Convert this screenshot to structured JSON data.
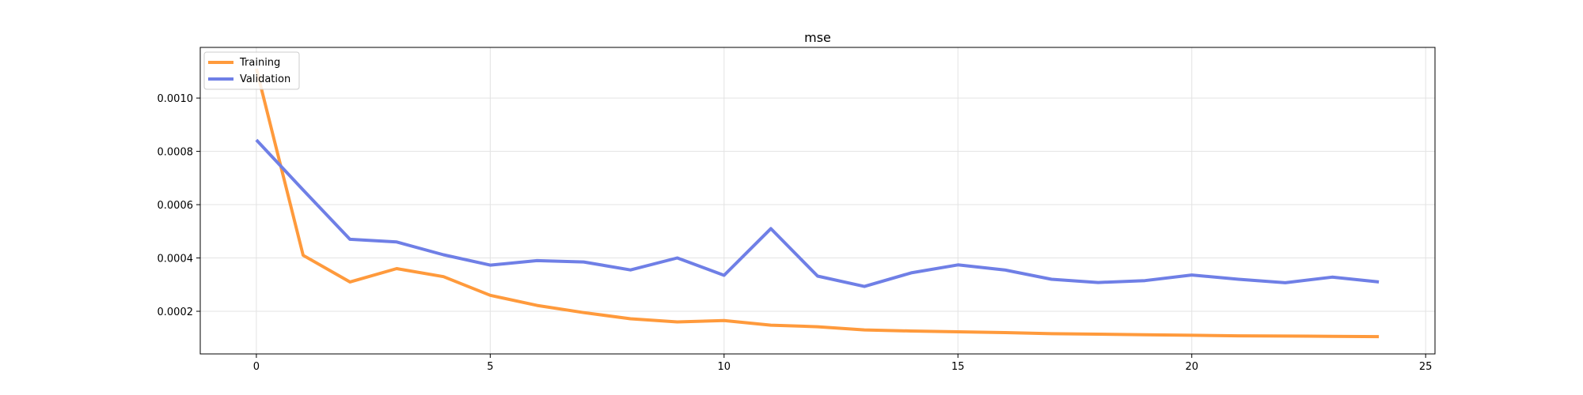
{
  "chart_data": {
    "type": "line",
    "title": "mse",
    "xlabel": "",
    "ylabel": "",
    "x": [
      0,
      1,
      2,
      3,
      4,
      5,
      6,
      7,
      8,
      9,
      10,
      11,
      12,
      13,
      14,
      15,
      16,
      17,
      18,
      19,
      20,
      21,
      22,
      23,
      24
    ],
    "xlim": [
      -1.2,
      25.2
    ],
    "ylim": [
      4e-05,
      0.00119
    ],
    "xticks": [
      0,
      5,
      10,
      15,
      20,
      25
    ],
    "yticks": [
      0.0002,
      0.0004,
      0.0006,
      0.0008,
      0.001
    ],
    "ytick_labels": [
      "0.0002",
      "0.0004",
      "0.0006",
      "0.0008",
      "0.0010"
    ],
    "grid": true,
    "legend_position": "top-left",
    "series": [
      {
        "name": "Training",
        "color": "#ff9a3c",
        "values": [
          0.00111,
          0.00041,
          0.00031,
          0.00036,
          0.00033,
          0.00026,
          0.000222,
          0.000195,
          0.000172,
          0.00016,
          0.000165,
          0.000148,
          0.000142,
          0.00013,
          0.000126,
          0.000123,
          0.00012,
          0.000116,
          0.000114,
          0.000112,
          0.00011,
          0.000108,
          0.000107,
          0.000106,
          0.000105
        ]
      },
      {
        "name": "Validation",
        "color": "#6f7fe6",
        "values": [
          0.000843,
          0.000655,
          0.00047,
          0.00046,
          0.000412,
          0.000373,
          0.00039,
          0.000385,
          0.000355,
          0.0004,
          0.000335,
          0.00051,
          0.000332,
          0.000293,
          0.000344,
          0.000374,
          0.000355,
          0.00032,
          0.000308,
          0.000315,
          0.000336,
          0.00032,
          0.000307,
          0.000328,
          0.00031
        ]
      }
    ]
  }
}
